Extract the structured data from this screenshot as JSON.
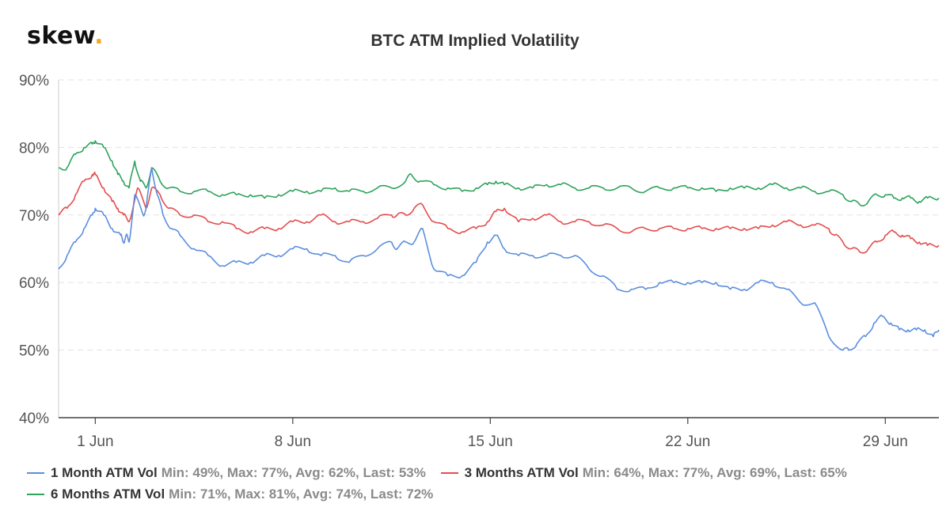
{
  "brand": {
    "logo_text": "skew",
    "logo_dot": ".",
    "dot_color": "#f5a623"
  },
  "chart_data": {
    "type": "line",
    "title": "BTC ATM Implied Volatility",
    "xlabel": "",
    "ylabel": "",
    "ylim": [
      40,
      90
    ],
    "yticks": [
      "40%",
      "50%",
      "60%",
      "70%",
      "80%",
      "90%"
    ],
    "xlim": [
      -1.3,
      29.9
    ],
    "xticks": [
      {
        "label": "1 Jun",
        "day": 0
      },
      {
        "label": "8 Jun",
        "day": 7
      },
      {
        "label": "15 Jun",
        "day": 14
      },
      {
        "label": "22 Jun",
        "day": 21
      },
      {
        "label": "29 Jun",
        "day": 28
      }
    ],
    "grid": true,
    "legend_position": "bottom",
    "series": [
      {
        "name": "1 Month ATM Vol",
        "color": "#5b8ee0",
        "stats": "Min: 49%, Max: 77%, Avg: 62%, Last: 53%",
        "x": [
          -1.3,
          -1.0,
          -0.7,
          -0.4,
          -0.1,
          0.0,
          0.3,
          0.6,
          0.9,
          1.0,
          1.1,
          1.2,
          1.4,
          1.7,
          1.8,
          2.0,
          2.2,
          2.4,
          2.7,
          3.0,
          3.5,
          4.0,
          4.5,
          5.0,
          5.5,
          6.0,
          6.5,
          7.0,
          7.5,
          8.0,
          8.5,
          9.0,
          9.5,
          10.0,
          10.5,
          10.7,
          11.0,
          11.3,
          11.6,
          12.0,
          12.5,
          13.0,
          13.5,
          13.9,
          14.2,
          14.5,
          15.0,
          15.5,
          16.0,
          16.5,
          17.0,
          17.5,
          18.0,
          18.5,
          19.0,
          19.5,
          20.0,
          20.5,
          21.0,
          21.5,
          22.0,
          22.5,
          23.0,
          23.5,
          24.0,
          24.5,
          25.0,
          25.5,
          26.0,
          26.5,
          26.7,
          27.0,
          27.3,
          27.6,
          27.9,
          28.2,
          28.5,
          28.8,
          29.1,
          29.4,
          29.7,
          29.9
        ],
        "y": [
          62,
          64,
          66,
          68,
          70,
          71,
          70,
          68,
          67,
          66,
          67,
          66,
          73,
          70,
          71,
          77,
          73,
          70,
          68,
          67,
          65,
          64,
          62.5,
          63,
          63,
          64,
          64,
          65,
          65,
          64,
          64,
          63,
          64,
          65,
          66,
          65,
          66,
          66,
          68,
          62,
          61,
          61,
          63,
          66,
          67,
          65,
          64,
          64,
          64,
          64,
          64,
          62,
          61,
          59,
          59,
          59,
          60,
          60,
          60,
          60,
          60,
          59,
          59,
          60,
          60,
          59,
          57,
          57,
          52,
          50,
          50,
          51,
          52,
          54,
          55,
          54,
          53,
          53,
          53,
          53,
          52,
          53
        ]
      },
      {
        "name": "3 Months ATM Vol",
        "color": "#e44d4d",
        "stats": "Min: 64%, Max: 77%, Avg: 69%, Last: 65%",
        "x": [
          -1.3,
          -1.0,
          -0.7,
          -0.4,
          -0.1,
          0.0,
          0.3,
          0.6,
          0.8,
          1.0,
          1.2,
          1.5,
          1.8,
          2.0,
          2.3,
          2.6,
          3.0,
          3.5,
          4.0,
          4.5,
          5.0,
          5.5,
          6.0,
          6.5,
          7.0,
          7.5,
          8.0,
          8.5,
          9.0,
          9.5,
          10.0,
          10.5,
          10.7,
          11.0,
          11.3,
          11.6,
          12.0,
          12.5,
          13.0,
          13.5,
          13.9,
          14.2,
          14.5,
          15.0,
          15.5,
          16.0,
          16.5,
          17.0,
          17.5,
          18.0,
          18.5,
          19.0,
          19.5,
          20.0,
          20.5,
          21.0,
          21.5,
          22.0,
          22.5,
          23.0,
          23.5,
          24.0,
          24.5,
          25.0,
          25.5,
          26.0,
          26.2,
          26.5,
          26.8,
          27.1,
          27.4,
          27.7,
          28.0,
          28.3,
          28.6,
          28.9,
          29.2,
          29.5,
          29.9
        ],
        "y": [
          70,
          71,
          73,
          75,
          76,
          76,
          74,
          72,
          71,
          70,
          69,
          74,
          71,
          74,
          73,
          71,
          70,
          70,
          69,
          69,
          68,
          67.5,
          68,
          68,
          69,
          69,
          70,
          69,
          69,
          69,
          69.5,
          70,
          70,
          70,
          71,
          71.5,
          69,
          68,
          67.5,
          68,
          69,
          70.5,
          71,
          69,
          69.5,
          70,
          69,
          69,
          69,
          68.5,
          68,
          67.5,
          68,
          68,
          68,
          68,
          68,
          68,
          68,
          68,
          68,
          68.5,
          69,
          68.5,
          68.5,
          68,
          67,
          66,
          65,
          64.5,
          65,
          66,
          67,
          67.5,
          67,
          66.5,
          66,
          65.5,
          65.5
        ]
      },
      {
        "name": "6 Months ATM Vol",
        "color": "#2ea35b",
        "stats": "Min: 71%, Max: 81%, Avg: 74%, Last: 72%",
        "x": [
          -1.3,
          -1.0,
          -0.7,
          -0.4,
          -0.1,
          0.0,
          0.3,
          0.6,
          0.8,
          1.0,
          1.2,
          1.4,
          1.6,
          1.8,
          2.0,
          2.3,
          2.6,
          3.0,
          3.5,
          4.0,
          4.5,
          5.0,
          5.5,
          6.0,
          6.5,
          7.0,
          7.5,
          8.0,
          8.5,
          9.0,
          9.5,
          10.0,
          10.5,
          11.0,
          11.2,
          11.5,
          12.0,
          12.5,
          13.0,
          13.5,
          13.9,
          14.2,
          14.5,
          15.0,
          15.5,
          16.0,
          16.5,
          17.0,
          17.5,
          18.0,
          18.5,
          19.0,
          19.5,
          20.0,
          20.5,
          21.0,
          21.5,
          22.0,
          22.5,
          23.0,
          23.5,
          24.0,
          24.5,
          25.0,
          25.5,
          26.0,
          26.5,
          26.8,
          27.1,
          27.4,
          27.7,
          28.0,
          28.3,
          28.6,
          28.9,
          29.2,
          29.5,
          29.9
        ],
        "y": [
          77,
          77,
          79,
          80,
          80.5,
          81,
          80,
          78,
          76,
          75,
          74,
          78,
          75,
          74,
          77,
          75,
          74,
          73.5,
          73.5,
          73.5,
          73,
          73,
          73,
          72.5,
          73,
          73.5,
          73.5,
          73.5,
          74,
          73.5,
          73.5,
          74,
          74,
          75,
          76,
          75,
          74.5,
          74,
          73.5,
          74,
          74.5,
          75,
          74.5,
          74,
          74,
          74.5,
          74.5,
          74,
          74,
          74,
          74,
          74,
          73.5,
          74,
          74,
          74,
          74,
          73.5,
          74,
          74,
          74,
          74.5,
          74,
          74,
          73.5,
          73.5,
          73,
          72,
          71.5,
          72,
          73,
          73,
          72.5,
          72.5,
          72.5,
          72,
          72.5,
          72.5
        ]
      }
    ]
  }
}
